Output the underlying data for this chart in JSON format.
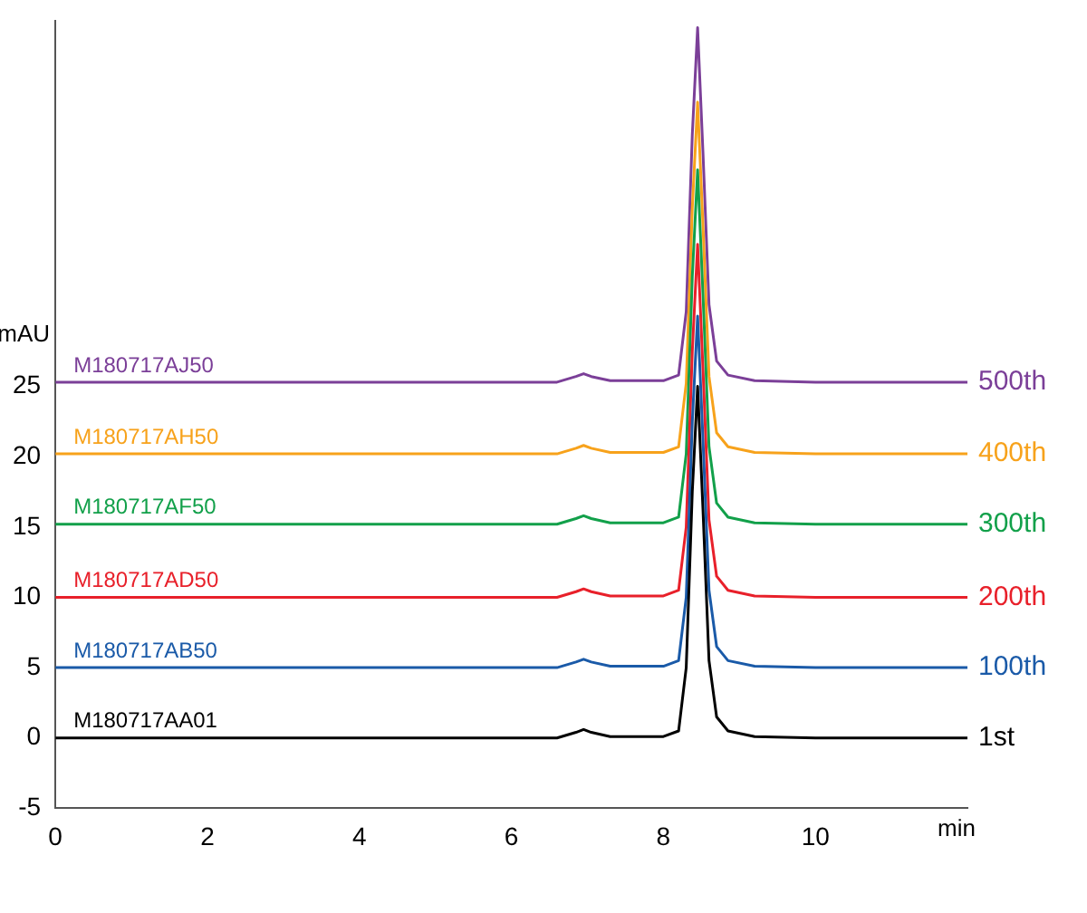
{
  "chart_data": {
    "type": "line",
    "xlabel": "min",
    "ylabel": "mAU",
    "x": [
      0,
      6.6,
      6.85,
      6.95,
      7.05,
      7.3,
      8.0,
      8.2,
      8.3,
      8.38,
      8.45,
      8.52,
      8.6,
      8.7,
      8.85,
      9.2,
      10,
      12
    ],
    "series": [
      {
        "name": "1st",
        "color": "#000000",
        "values": [
          0,
          0,
          0.4,
          0.6,
          0.4,
          0.1,
          0.1,
          0.5,
          5,
          17.5,
          25,
          16.3,
          5.5,
          1.5,
          0.5,
          0.1,
          0,
          0
        ]
      },
      {
        "name": "100th",
        "color": "#1a5aa8",
        "values": [
          5,
          5,
          5.4,
          5.6,
          5.4,
          5.1,
          5.1,
          5.5,
          10,
          22.5,
          30,
          21.3,
          10.5,
          6.5,
          5.5,
          5.1,
          5,
          5
        ]
      },
      {
        "name": "200th",
        "color": "#e8202a",
        "values": [
          10,
          10,
          10.4,
          10.6,
          10.4,
          10.1,
          10.1,
          10.5,
          15,
          27.5,
          35.1,
          26.3,
          15.5,
          11.5,
          10.5,
          10.1,
          10,
          10
        ]
      },
      {
        "name": "300th",
        "color": "#12a04a",
        "values": [
          15.2,
          15.2,
          15.6,
          15.8,
          15.6,
          15.3,
          15.3,
          15.7,
          20.2,
          32.8,
          40.4,
          31.6,
          20.7,
          16.7,
          15.7,
          15.3,
          15.2,
          15.2
        ]
      },
      {
        "name": "400th",
        "color": "#f7a21b",
        "values": [
          20.2,
          20.2,
          20.6,
          20.8,
          20.6,
          20.3,
          20.3,
          20.7,
          25.2,
          37.7,
          45.2,
          36.5,
          25.7,
          21.7,
          20.7,
          20.3,
          20.2,
          20.2
        ]
      },
      {
        "name": "500th",
        "color": "#7b3f98",
        "values": [
          25.3,
          25.3,
          25.7,
          25.9,
          25.7,
          25.4,
          25.4,
          25.8,
          30.3,
          42.9,
          50.5,
          41.7,
          30.8,
          26.8,
          25.8,
          25.4,
          25.3,
          25.3
        ]
      }
    ],
    "annotations": [
      "M180717AA01",
      "M180717AB50",
      "M180717AD50",
      "M180717AF50",
      "M180717AH50",
      "M180717AJ50"
    ],
    "xlim": [
      0,
      12
    ],
    "xticks": [
      0,
      2,
      4,
      6,
      8,
      10
    ],
    "ylim": [
      -5,
      51
    ],
    "yticks": [
      -5,
      0,
      5,
      10,
      15,
      20,
      25
    ],
    "grid": false,
    "legend": false,
    "marker": "none",
    "line_style": "solid"
  }
}
